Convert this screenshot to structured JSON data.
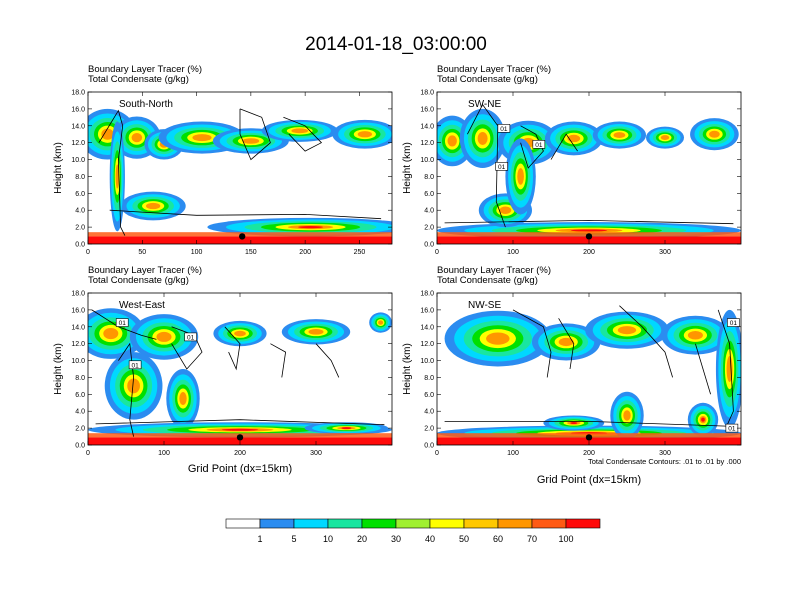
{
  "page": {
    "title": "2014-01-18_03:00:00",
    "xlabel": "Grid Point (dx=15km)",
    "ylabel": "Height (km)",
    "contour_note": "Total Condensate Contours: .01 to .01 by .000",
    "panel_title_1": "Boundary Layer Tracer   (%)",
    "panel_title_2": "Total Condensate   (g/kg)",
    "contour_label": "01"
  },
  "colors": {
    "scale": [
      "#ffffff",
      "#2b8cf0",
      "#00d8ff",
      "#19e6a0",
      "#00e000",
      "#a0f030",
      "#ffff00",
      "#ffc800",
      "#ff9600",
      "#ff5a14",
      "#ff0a0a"
    ],
    "contour": "#000000",
    "marker": "#000000"
  },
  "chart_data": [
    {
      "type": "heatmap",
      "id": "p1",
      "label": "South-North",
      "xlim": [
        0,
        280
      ],
      "xticks": [
        0,
        50,
        100,
        150,
        200,
        250
      ],
      "ylim": [
        0,
        18
      ],
      "yticks": [
        0.0,
        2.0,
        4.0,
        6.0,
        8.0,
        10.0,
        12.0,
        14.0,
        16.0,
        18.0
      ],
      "marker": {
        "x": 142,
        "y": 0.9
      },
      "contour_labels": [],
      "show_xlabel": false,
      "show_note": false
    },
    {
      "type": "heatmap",
      "id": "p2",
      "label": "SW-NE",
      "xlim": [
        0,
        400
      ],
      "xticks": [
        0,
        100,
        200,
        300
      ],
      "ylim": [
        0,
        18
      ],
      "yticks": [
        0.0,
        2.0,
        4.0,
        6.0,
        8.0,
        10.0,
        12.0,
        14.0,
        16.0,
        18.0
      ],
      "marker": {
        "x": 200,
        "y": 0.9
      },
      "contour_labels": [
        {
          "x": 88,
          "y": 13.7
        },
        {
          "x": 134,
          "y": 11.8
        },
        {
          "x": 85,
          "y": 9.2
        }
      ],
      "show_xlabel": false,
      "show_note": false
    },
    {
      "type": "heatmap",
      "id": "p3",
      "label": "West-East",
      "xlim": [
        0,
        400
      ],
      "xticks": [
        0,
        100,
        200,
        300
      ],
      "ylim": [
        0,
        18
      ],
      "yticks": [
        0.0,
        2.0,
        4.0,
        6.0,
        8.0,
        10.0,
        12.0,
        14.0,
        16.0,
        18.0
      ],
      "marker": {
        "x": 200,
        "y": 0.9
      },
      "contour_labels": [
        {
          "x": 45,
          "y": 14.5
        },
        {
          "x": 135,
          "y": 12.8
        },
        {
          "x": 62,
          "y": 9.5
        }
      ],
      "show_xlabel": true,
      "show_note": false
    },
    {
      "type": "heatmap",
      "id": "p4",
      "label": "NW-SE",
      "xlim": [
        0,
        400
      ],
      "xticks": [
        0,
        100,
        200,
        300
      ],
      "ylim": [
        0,
        18
      ],
      "yticks": [
        0.0,
        2.0,
        4.0,
        6.0,
        8.0,
        10.0,
        12.0,
        14.0,
        16.0,
        18.0
      ],
      "marker": {
        "x": 200,
        "y": 0.9
      },
      "contour_labels": [
        {
          "x": 390,
          "y": 14.5
        },
        {
          "x": 388,
          "y": 2.0
        }
      ],
      "show_xlabel": true,
      "show_note": true
    }
  ],
  "colorbar": {
    "labels": [
      "1",
      "5",
      "10",
      "20",
      "30",
      "40",
      "50",
      "60",
      "70",
      "100"
    ]
  }
}
